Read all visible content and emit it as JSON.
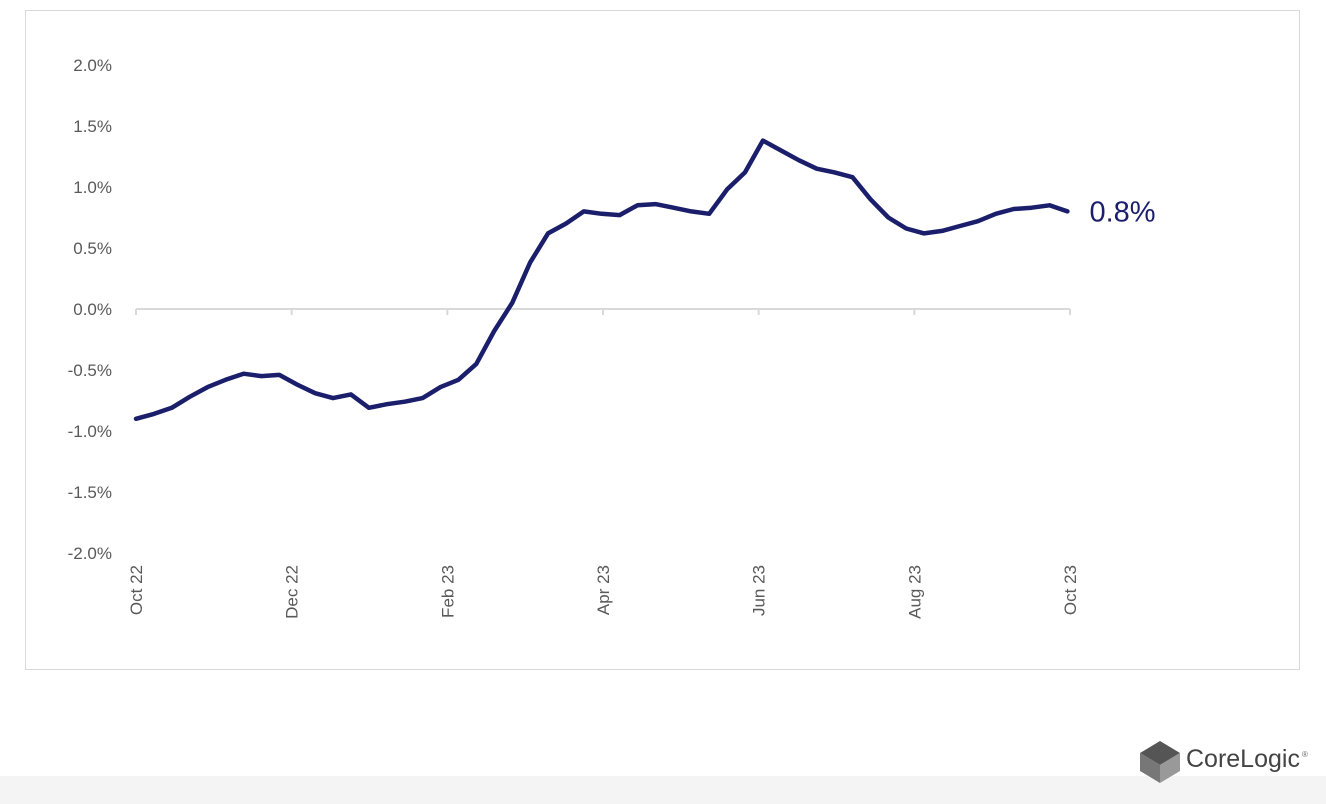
{
  "chart_data": {
    "type": "line",
    "title": "",
    "xlabel": "",
    "ylabel": "",
    "ylim": [
      -2.0,
      2.0
    ],
    "yticks": [
      "2.0%",
      "1.5%",
      "1.0%",
      "0.5%",
      "0.0%",
      "-0.5%",
      "-1.0%",
      "-1.5%",
      "-2.0%"
    ],
    "ytick_values": [
      2.0,
      1.5,
      1.0,
      0.5,
      0.0,
      -0.5,
      -1.0,
      -1.5,
      -2.0
    ],
    "xticks": [
      "Oct 22",
      "Dec 22",
      "Feb 23",
      "Apr 23",
      "Jun 23",
      "Aug 23",
      "Oct 23"
    ],
    "x_range": [
      "2022-10-01",
      "2023-10-01"
    ],
    "grid": false,
    "series": [
      {
        "color": "#1b1f6b",
        "points": [
          [
            "2022-10-01",
            -0.9
          ],
          [
            "2022-10-08",
            -0.86
          ],
          [
            "2022-10-15",
            -0.81
          ],
          [
            "2022-10-22",
            -0.72
          ],
          [
            "2022-10-29",
            -0.64
          ],
          [
            "2022-11-05",
            -0.58
          ],
          [
            "2022-11-12",
            -0.53
          ],
          [
            "2022-11-19",
            -0.55
          ],
          [
            "2022-11-26",
            -0.54
          ],
          [
            "2022-12-03",
            -0.62
          ],
          [
            "2022-12-10",
            -0.69
          ],
          [
            "2022-12-17",
            -0.73
          ],
          [
            "2022-12-24",
            -0.7
          ],
          [
            "2022-12-31",
            -0.81
          ],
          [
            "2023-01-07",
            -0.78
          ],
          [
            "2023-01-14",
            -0.76
          ],
          [
            "2023-01-21",
            -0.73
          ],
          [
            "2023-01-28",
            -0.64
          ],
          [
            "2023-02-04",
            -0.58
          ],
          [
            "2023-02-11",
            -0.45
          ],
          [
            "2023-02-18",
            -0.18
          ],
          [
            "2023-02-25",
            0.05
          ],
          [
            "2023-03-04",
            0.38
          ],
          [
            "2023-03-11",
            0.62
          ],
          [
            "2023-03-18",
            0.7
          ],
          [
            "2023-03-25",
            0.8
          ],
          [
            "2023-04-01",
            0.78
          ],
          [
            "2023-04-08",
            0.77
          ],
          [
            "2023-04-15",
            0.85
          ],
          [
            "2023-04-22",
            0.86
          ],
          [
            "2023-04-29",
            0.83
          ],
          [
            "2023-05-06",
            0.8
          ],
          [
            "2023-05-13",
            0.78
          ],
          [
            "2023-05-20",
            0.98
          ],
          [
            "2023-05-27",
            1.12
          ],
          [
            "2023-06-03",
            1.38
          ],
          [
            "2023-06-10",
            1.3
          ],
          [
            "2023-06-17",
            1.22
          ],
          [
            "2023-06-24",
            1.15
          ],
          [
            "2023-07-01",
            1.12
          ],
          [
            "2023-07-08",
            1.08
          ],
          [
            "2023-07-15",
            0.9
          ],
          [
            "2023-07-22",
            0.75
          ],
          [
            "2023-07-29",
            0.66
          ],
          [
            "2023-08-05",
            0.62
          ],
          [
            "2023-08-12",
            0.64
          ],
          [
            "2023-08-19",
            0.68
          ],
          [
            "2023-08-26",
            0.72
          ],
          [
            "2023-09-02",
            0.78
          ],
          [
            "2023-09-09",
            0.82
          ],
          [
            "2023-09-16",
            0.83
          ],
          [
            "2023-09-23",
            0.85
          ],
          [
            "2023-09-30",
            0.8
          ]
        ]
      }
    ],
    "annotations": [
      {
        "text": "0.8%",
        "color": "#1b1f6b"
      }
    ]
  },
  "header": {
    "partial_title": ""
  },
  "logo": {
    "brand": "CoreLogic",
    "mark": "®",
    "icon": "cube-icon"
  }
}
